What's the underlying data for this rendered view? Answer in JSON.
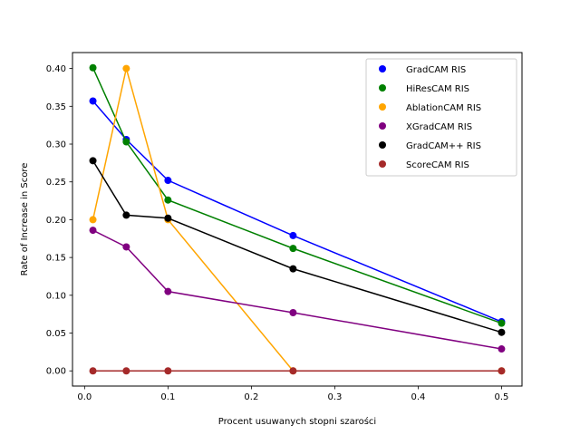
{
  "chart_data": {
    "type": "line",
    "title": "",
    "xlabel": "Procent usuwanych stopni szarości",
    "ylabel": "Rate of Increase in Score",
    "x": [
      0.01,
      0.05,
      0.1,
      0.25,
      0.5
    ],
    "xlim": [
      -0.0145,
      0.5245
    ],
    "ylim": [
      -0.0201,
      0.4211
    ],
    "xticks": [
      0.0,
      0.1,
      0.2,
      0.3,
      0.4,
      0.5
    ],
    "xtick_labels": [
      "0.0",
      "0.1",
      "0.2",
      "0.3",
      "0.4",
      "0.5"
    ],
    "yticks": [
      0.0,
      0.05,
      0.1,
      0.15,
      0.2,
      0.25,
      0.3,
      0.35,
      0.4
    ],
    "ytick_labels": [
      "0.00",
      "0.05",
      "0.10",
      "0.15",
      "0.20",
      "0.25",
      "0.30",
      "0.35",
      "0.40"
    ],
    "grid": false,
    "legend_position": "top-right",
    "series": [
      {
        "name": "GradCAM RIS",
        "color": "#0000ff",
        "values": [
          0.357,
          0.306,
          0.252,
          0.179,
          0.065
        ]
      },
      {
        "name": "HiResCAM RIS",
        "color": "#008000",
        "values": [
          0.401,
          0.303,
          0.226,
          0.162,
          0.063
        ]
      },
      {
        "name": "AblationCAM RIS",
        "color": "#ffa500",
        "values": [
          0.2,
          0.4,
          0.2,
          0.0,
          0.0
        ]
      },
      {
        "name": "XGradCAM RIS",
        "color": "#800080",
        "values": [
          0.186,
          0.164,
          0.105,
          0.077,
          0.029
        ]
      },
      {
        "name": "GradCAM++ RIS",
        "color": "#000000",
        "values": [
          0.278,
          0.206,
          0.202,
          0.135,
          0.051
        ]
      },
      {
        "name": "ScoreCAM RIS",
        "color": "#a52a2a",
        "values": [
          0.0,
          0.0,
          0.0,
          0.0,
          0.0
        ]
      }
    ]
  }
}
